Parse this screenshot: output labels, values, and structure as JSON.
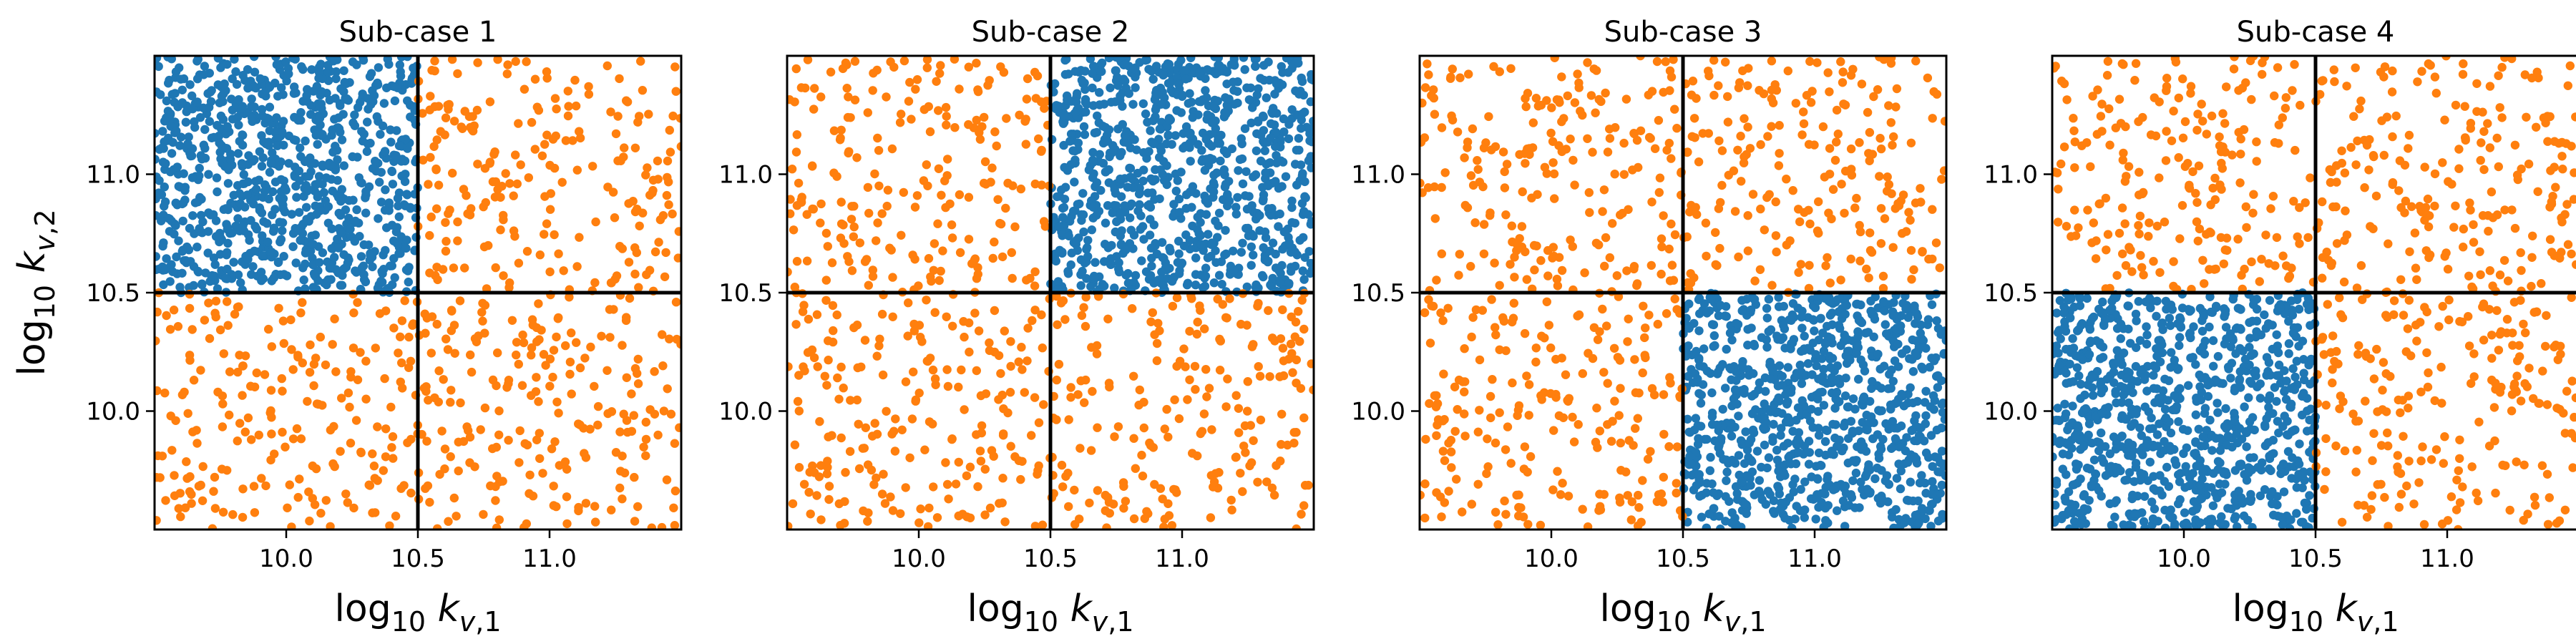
{
  "chart_data": [
    {
      "type": "scatter",
      "title": "Sub-case 1",
      "xlabel": "log10 k_v,1",
      "ylabel": "log10 k_v,2",
      "xlim": [
        9.5,
        11.5
      ],
      "ylim": [
        9.5,
        11.5
      ],
      "xticks": [
        "10.0",
        "10.5",
        "11.0"
      ],
      "yticks": [
        "10.0",
        "10.5",
        "11.0"
      ],
      "threshold_lines": {
        "x": 10.5,
        "y": 10.5
      },
      "series": [
        {
          "color": "#1f77b4",
          "region": {
            "x": [
              9.5,
              10.5
            ],
            "y": [
              10.5,
              11.5
            ]
          },
          "approx_count": 900
        },
        {
          "color": "#ff7f0e",
          "regions": [
            {
              "x": [
                10.5,
                11.5
              ],
              "y": [
                10.5,
                11.5
              ]
            },
            {
              "x": [
                9.5,
                10.5
              ],
              "y": [
                9.5,
                10.5
              ]
            },
            {
              "x": [
                10.5,
                11.5
              ],
              "y": [
                9.5,
                10.5
              ]
            }
          ],
          "approx_count_per_region": 220
        }
      ]
    },
    {
      "type": "scatter",
      "title": "Sub-case 2",
      "xlabel": "log10 k_v,1",
      "ylabel": "",
      "xlim": [
        9.5,
        11.5
      ],
      "ylim": [
        9.5,
        11.5
      ],
      "xticks": [
        "10.0",
        "10.5",
        "11.0"
      ],
      "yticks": [
        "10.0",
        "10.5",
        "11.0"
      ],
      "threshold_lines": {
        "x": 10.5,
        "y": 10.5
      },
      "series": [
        {
          "color": "#1f77b4",
          "region": {
            "x": [
              10.5,
              11.5
            ],
            "y": [
              10.5,
              11.5
            ]
          },
          "approx_count": 900
        },
        {
          "color": "#ff7f0e",
          "regions": [
            {
              "x": [
                9.5,
                10.5
              ],
              "y": [
                10.5,
                11.5
              ]
            },
            {
              "x": [
                9.5,
                10.5
              ],
              "y": [
                9.5,
                10.5
              ]
            },
            {
              "x": [
                10.5,
                11.5
              ],
              "y": [
                9.5,
                10.5
              ]
            }
          ],
          "approx_count_per_region": 220
        }
      ]
    },
    {
      "type": "scatter",
      "title": "Sub-case 3",
      "xlabel": "log10 k_v,1",
      "ylabel": "",
      "xlim": [
        9.5,
        11.5
      ],
      "ylim": [
        9.5,
        11.5
      ],
      "xticks": [
        "10.0",
        "10.5",
        "11.0"
      ],
      "yticks": [
        "10.0",
        "10.5",
        "11.0"
      ],
      "threshold_lines": {
        "x": 10.5,
        "y": 10.5
      },
      "series": [
        {
          "color": "#1f77b4",
          "region": {
            "x": [
              10.5,
              11.5
            ],
            "y": [
              9.5,
              10.5
            ]
          },
          "approx_count": 900
        },
        {
          "color": "#ff7f0e",
          "regions": [
            {
              "x": [
                9.5,
                10.5
              ],
              "y": [
                10.5,
                11.5
              ]
            },
            {
              "x": [
                10.5,
                11.5
              ],
              "y": [
                10.5,
                11.5
              ]
            },
            {
              "x": [
                9.5,
                10.5
              ],
              "y": [
                9.5,
                10.5
              ]
            }
          ],
          "approx_count_per_region": 220
        }
      ]
    },
    {
      "type": "scatter",
      "title": "Sub-case 4",
      "xlabel": "log10 k_v,1",
      "ylabel": "",
      "xlim": [
        9.5,
        11.5
      ],
      "ylim": [
        9.5,
        11.5
      ],
      "xticks": [
        "10.0",
        "10.5",
        "11.0"
      ],
      "yticks": [
        "10.0",
        "10.5",
        "11.0"
      ],
      "threshold_lines": {
        "x": 10.5,
        "y": 10.5
      },
      "series": [
        {
          "color": "#1f77b4",
          "region": {
            "x": [
              9.5,
              10.5
            ],
            "y": [
              9.5,
              10.5
            ]
          },
          "approx_count": 900
        },
        {
          "color": "#ff7f0e",
          "regions": [
            {
              "x": [
                9.5,
                10.5
              ],
              "y": [
                10.5,
                11.5
              ]
            },
            {
              "x": [
                10.5,
                11.5
              ],
              "y": [
                10.5,
                11.5
              ]
            },
            {
              "x": [
                10.5,
                11.5
              ],
              "y": [
                9.5,
                10.5
              ]
            }
          ],
          "approx_count_per_region": 220
        }
      ]
    }
  ]
}
